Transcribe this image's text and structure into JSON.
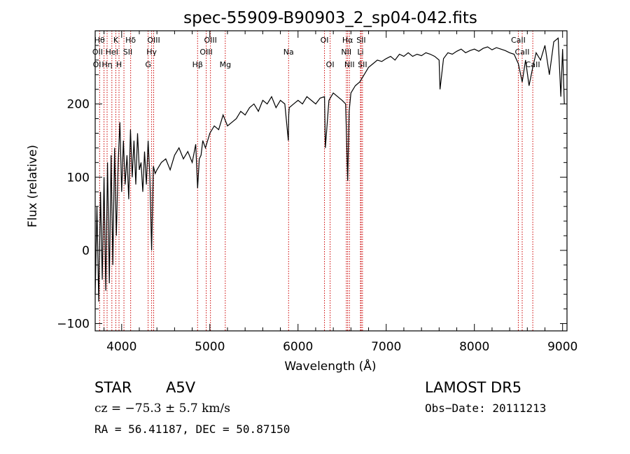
{
  "chart_data": {
    "type": "line",
    "title": "spec-55909-B90903_2_sp04-042.fits",
    "xlabel": "Wavelength (Å)",
    "ylabel": "Flux (relative)",
    "xlim": [
      3700,
      9050
    ],
    "ylim": [
      -110,
      300
    ],
    "xticks": [
      4000,
      5000,
      6000,
      7000,
      8000,
      9000
    ],
    "yticks": [
      -100,
      0,
      100,
      200
    ],
    "grid": false,
    "series": [
      {
        "color": "#000000",
        "x": [
          3700,
          3720,
          3740,
          3760,
          3780,
          3800,
          3820,
          3840,
          3860,
          3880,
          3900,
          3920,
          3940,
          3960,
          3980,
          4000,
          4020,
          4040,
          4060,
          4080,
          4100,
          4120,
          4140,
          4160,
          4180,
          4200,
          4220,
          4240,
          4260,
          4280,
          4300,
          4320,
          4340,
          4360,
          4380,
          4400,
          4450,
          4500,
          4550,
          4600,
          4650,
          4700,
          4750,
          4800,
          4840,
          4861,
          4880,
          4900,
          4920,
          4950,
          5000,
          5050,
          5100,
          5150,
          5200,
          5250,
          5300,
          5350,
          5400,
          5450,
          5500,
          5550,
          5600,
          5650,
          5700,
          5750,
          5800,
          5850,
          5890,
          5895,
          5900,
          5950,
          6000,
          6050,
          6100,
          6150,
          6200,
          6250,
          6300,
          6310,
          6350,
          6400,
          6450,
          6500,
          6540,
          6563,
          6580,
          6600,
          6650,
          6700,
          6750,
          6800,
          6850,
          6900,
          6950,
          7000,
          7050,
          7100,
          7150,
          7200,
          7250,
          7300,
          7350,
          7400,
          7450,
          7500,
          7550,
          7600,
          7610,
          7650,
          7700,
          7750,
          7800,
          7850,
          7900,
          7950,
          8000,
          8050,
          8100,
          8150,
          8200,
          8250,
          8300,
          8350,
          8400,
          8450,
          8498,
          8542,
          8580,
          8620,
          8662,
          8700,
          8750,
          8800,
          8850,
          8900,
          8950,
          8980,
          9000,
          9020
        ],
        "y": [
          -60,
          60,
          -70,
          80,
          -40,
          100,
          -55,
          120,
          -45,
          130,
          -20,
          140,
          20,
          120,
          175,
          80,
          150,
          90,
          130,
          70,
          165,
          100,
          150,
          90,
          160,
          110,
          120,
          80,
          135,
          90,
          150,
          100,
          0,
          115,
          105,
          110,
          120,
          125,
          110,
          130,
          140,
          125,
          135,
          120,
          145,
          85,
          125,
          130,
          150,
          140,
          160,
          170,
          165,
          185,
          170,
          175,
          180,
          190,
          185,
          195,
          200,
          190,
          205,
          200,
          210,
          195,
          205,
          200,
          150,
          185,
          195,
          200,
          205,
          200,
          210,
          205,
          200,
          208,
          210,
          140,
          205,
          215,
          210,
          205,
          200,
          95,
          190,
          215,
          225,
          230,
          240,
          250,
          255,
          260,
          258,
          262,
          265,
          260,
          268,
          265,
          270,
          265,
          268,
          266,
          270,
          268,
          265,
          260,
          220,
          262,
          270,
          268,
          272,
          275,
          270,
          273,
          275,
          272,
          276,
          278,
          274,
          277,
          275,
          273,
          270,
          268,
          255,
          230,
          260,
          225,
          250,
          270,
          260,
          280,
          240,
          285,
          290,
          210,
          275,
          200
        ]
      }
    ],
    "lines": {
      "color": "#cc0000",
      "wavelengths": [
        3750,
        3800,
        3835,
        3889,
        3934,
        3970,
        4026,
        4102,
        4300,
        4340,
        4363,
        4861,
        4959,
        5007,
        5175,
        5893,
        6300,
        6364,
        6548,
        6563,
        6583,
        6708,
        6716,
        6731,
        8498,
        8542,
        8662
      ]
    },
    "line_labels": [
      {
        "text": "Hθ",
        "x": 3750,
        "row": 1
      },
      {
        "text": "K",
        "x": 3934,
        "row": 1
      },
      {
        "text": "Hδ",
        "x": 4102,
        "row": 1
      },
      {
        "text": "OIII",
        "x": 4363,
        "row": 1
      },
      {
        "text": "OIII",
        "x": 5007,
        "row": 1
      },
      {
        "text": "OI",
        "x": 6300,
        "row": 1
      },
      {
        "text": "Hα",
        "x": 6563,
        "row": 1
      },
      {
        "text": "SII",
        "x": 6716,
        "row": 1
      },
      {
        "text": "CaII",
        "x": 8498,
        "row": 1
      },
      {
        "text": "OII",
        "x": 3727,
        "row": 2
      },
      {
        "text": "HeI",
        "x": 3889,
        "row": 2
      },
      {
        "text": "SII",
        "x": 4069,
        "row": 2
      },
      {
        "text": "Hγ",
        "x": 4340,
        "row": 2
      },
      {
        "text": "OIII",
        "x": 4959,
        "row": 2
      },
      {
        "text": "Na",
        "x": 5893,
        "row": 2
      },
      {
        "text": "NII",
        "x": 6548,
        "row": 2
      },
      {
        "text": "Li",
        "x": 6708,
        "row": 2
      },
      {
        "text": "CaII",
        "x": 8542,
        "row": 2
      },
      {
        "text": "OI",
        "x": 3720,
        "row": 3
      },
      {
        "text": "Hη",
        "x": 3835,
        "row": 3
      },
      {
        "text": "H",
        "x": 3970,
        "row": 3
      },
      {
        "text": "G",
        "x": 4300,
        "row": 3
      },
      {
        "text": "Hβ",
        "x": 4861,
        "row": 3
      },
      {
        "text": "Mg",
        "x": 5175,
        "row": 3
      },
      {
        "text": "OI",
        "x": 6364,
        "row": 3
      },
      {
        "text": "NII",
        "x": 6583,
        "row": 3
      },
      {
        "text": "SII",
        "x": 6731,
        "row": 3
      },
      {
        "text": "CaII",
        "x": 8662,
        "row": 3
      }
    ]
  },
  "info": {
    "object_class": "STAR",
    "subclass": "A5V",
    "survey": "LAMOST DR5",
    "cz": "cz = −75.3 ± 5.7 km/s",
    "obs_date": "Obs−Date: 20111213",
    "radec": "RA =  56.41187, DEC =  50.87150"
  }
}
